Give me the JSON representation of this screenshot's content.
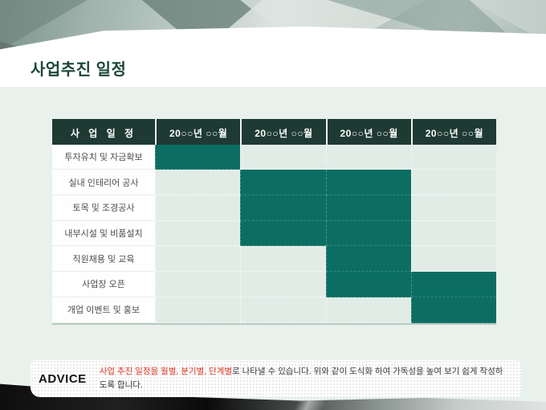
{
  "slide": {
    "title": "사업추진 일정"
  },
  "table": {
    "header": {
      "label": "사 업 일 정",
      "months": [
        "20○○년 ○○월",
        "20○○년 ○○월",
        "20○○년 ○○월",
        "20○○년 ○○월"
      ]
    },
    "rows": [
      {
        "label": "투자유치 및 자금확보",
        "filled": [
          1
        ]
      },
      {
        "label": "실내 인테리어 공사",
        "filled": [
          2,
          3
        ]
      },
      {
        "label": "토목 및 조경공사",
        "filled": [
          2,
          3
        ]
      },
      {
        "label": "내부시설 및 비품설치",
        "filled": [
          2,
          3
        ]
      },
      {
        "label": "직원채용 및 교육",
        "filled": [
          3
        ]
      },
      {
        "label": "사업장 오픈",
        "filled": [
          3,
          4
        ]
      },
      {
        "label": "개업 이벤트 및 홍보",
        "filled": [
          4
        ]
      }
    ],
    "colors": {
      "header_bg": "#1e3a33",
      "fill": "#0c6e62",
      "empty_cell": "#e2ece7"
    }
  },
  "chart_data": {
    "type": "table",
    "title": "사업추진 일정",
    "categories": [
      "20○○년 ○○월",
      "20○○년 ○○월",
      "20○○년 ○○월",
      "20○○년 ○○월"
    ],
    "series": [
      {
        "name": "투자유치 및 자금확보",
        "values": [
          1,
          0,
          0,
          0
        ]
      },
      {
        "name": "실내 인테리어 공사",
        "values": [
          0,
          1,
          1,
          0
        ]
      },
      {
        "name": "토목 및 조경공사",
        "values": [
          0,
          1,
          1,
          0
        ]
      },
      {
        "name": "내부시설 및 비품설치",
        "values": [
          0,
          1,
          1,
          0
        ]
      },
      {
        "name": "직원채용 및 교육",
        "values": [
          0,
          0,
          1,
          0
        ]
      },
      {
        "name": "사업장 오픈",
        "values": [
          0,
          0,
          1,
          1
        ]
      },
      {
        "name": "개업 이벤트 및 홍보",
        "values": [
          0,
          0,
          0,
          1
        ]
      }
    ]
  },
  "advice": {
    "label": "ADVICE",
    "highlight": "사업 추진 일정을 월별, 분기별, 단계별",
    "rest": "로 나타낼 수 있습니다. 위와 같이 도식화 하여 가독성을 높여 보기 쉽게 작성하도록 합니다."
  }
}
